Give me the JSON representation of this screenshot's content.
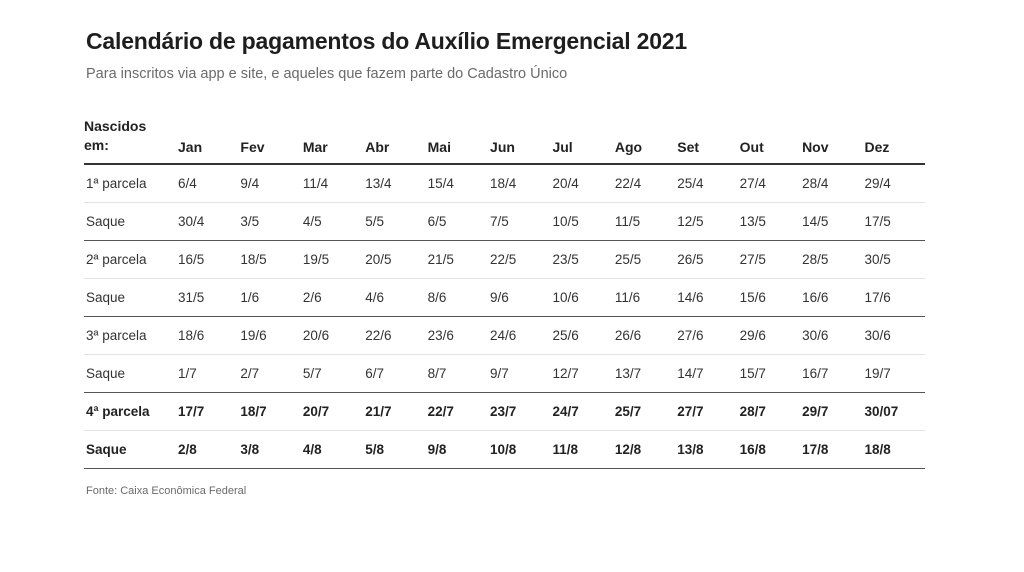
{
  "title": "Calendário de pagamentos do Auxílio Emergencial 2021",
  "subtitle": "Para inscritos via app e site, e aqueles que fazem parte do Cadastro Único",
  "source": "Fonte: Caixa Econômica Federal",
  "chart_data": {
    "type": "table",
    "corner_header": [
      "Nascidos",
      "em:"
    ],
    "columns": [
      "Jan",
      "Fev",
      "Mar",
      "Abr",
      "Mai",
      "Jun",
      "Jul",
      "Ago",
      "Set",
      "Out",
      "Nov",
      "Dez"
    ],
    "rows": [
      {
        "label": "1ª parcela",
        "kind": "parcela",
        "bold": false,
        "values": [
          "6/4",
          "9/4",
          "11/4",
          "13/4",
          "15/4",
          "18/4",
          "20/4",
          "22/4",
          "25/4",
          "27/4",
          "28/4",
          "29/4"
        ]
      },
      {
        "label": "Saque",
        "kind": "saque",
        "bold": false,
        "values": [
          "30/4",
          "3/5",
          "4/5",
          "5/5",
          "6/5",
          "7/5",
          "10/5",
          "11/5",
          "12/5",
          "13/5",
          "14/5",
          "17/5"
        ]
      },
      {
        "label": "2ª parcela",
        "kind": "parcela",
        "bold": false,
        "values": [
          "16/5",
          "18/5",
          "19/5",
          "20/5",
          "21/5",
          "22/5",
          "23/5",
          "25/5",
          "26/5",
          "27/5",
          "28/5",
          "30/5"
        ]
      },
      {
        "label": "Saque",
        "kind": "saque",
        "bold": false,
        "values": [
          "31/5",
          "1/6",
          "2/6",
          "4/6",
          "8/6",
          "9/6",
          "10/6",
          "11/6",
          "14/6",
          "15/6",
          "16/6",
          "17/6"
        ]
      },
      {
        "label": "3ª parcela",
        "kind": "parcela",
        "bold": false,
        "values": [
          "18/6",
          "19/6",
          "20/6",
          "22/6",
          "23/6",
          "24/6",
          "25/6",
          "26/6",
          "27/6",
          "29/6",
          "30/6",
          "30/6"
        ]
      },
      {
        "label": "Saque",
        "kind": "saque",
        "bold": false,
        "values": [
          "1/7",
          "2/7",
          "5/7",
          "6/7",
          "8/7",
          "9/7",
          "12/7",
          "13/7",
          "14/7",
          "15/7",
          "16/7",
          "19/7"
        ]
      },
      {
        "label": "4ª parcela",
        "kind": "parcela",
        "bold": true,
        "values": [
          "17/7",
          "18/7",
          "20/7",
          "21/7",
          "22/7",
          "23/7",
          "24/7",
          "25/7",
          "27/7",
          "28/7",
          "29/7",
          "30/07"
        ]
      },
      {
        "label": "Saque",
        "kind": "saque",
        "bold": true,
        "values": [
          "2/8",
          "3/8",
          "4/8",
          "5/8",
          "9/8",
          "10/8",
          "11/8",
          "12/8",
          "13/8",
          "16/8",
          "17/8",
          "18/8"
        ]
      }
    ]
  }
}
